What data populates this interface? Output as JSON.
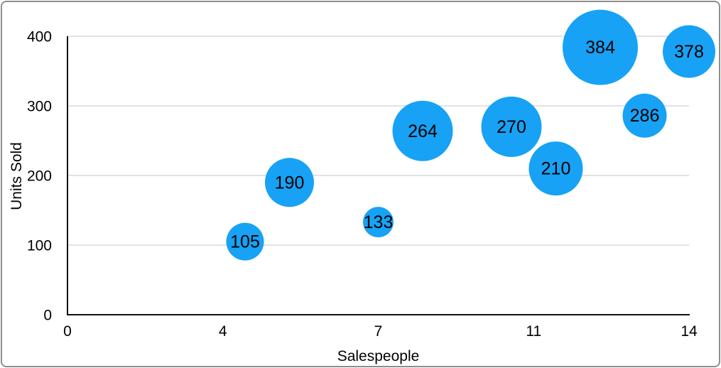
{
  "chart_data": {
    "type": "bubble",
    "title": "",
    "xlabel": "Salespeople",
    "ylabel": "Units Sold",
    "xlim": [
      0,
      14
    ],
    "ylim": [
      0,
      400
    ],
    "x_ticks": [
      {
        "v": 0,
        "label": "0"
      },
      {
        "v": 3.5,
        "label": "4"
      },
      {
        "v": 7,
        "label": "7"
      },
      {
        "v": 10.5,
        "label": "11"
      },
      {
        "v": 14,
        "label": "14"
      }
    ],
    "y_ticks": [
      {
        "v": 0,
        "label": "0"
      },
      {
        "v": 100,
        "label": "100"
      },
      {
        "v": 200,
        "label": "200"
      },
      {
        "v": 300,
        "label": "300"
      },
      {
        "v": 400,
        "label": "400"
      }
    ],
    "grid": "horizontal",
    "legend_position": "none",
    "colors": {
      "bubble_fill": "#17A2F5",
      "axis_line": "#111111",
      "gridline": "#d8d8d8",
      "text": "#000000",
      "frame_border": "#8e8e8e"
    },
    "points": [
      {
        "x": 4,
        "y": 105,
        "label": "105",
        "radius_px": 26.5
      },
      {
        "x": 5,
        "y": 190,
        "label": "190",
        "radius_px": 34.5
      },
      {
        "x": 7,
        "y": 133,
        "label": "133",
        "radius_px": 21.5
      },
      {
        "x": 8,
        "y": 264,
        "label": "264",
        "radius_px": 42.5
      },
      {
        "x": 10,
        "y": 270,
        "label": "270",
        "radius_px": 42.5
      },
      {
        "x": 11,
        "y": 210,
        "label": "210",
        "radius_px": 38
      },
      {
        "x": 12,
        "y": 384,
        "label": "384",
        "radius_px": 53
      },
      {
        "x": 13,
        "y": 286,
        "label": "286",
        "radius_px": 31
      },
      {
        "x": 14,
        "y": 378,
        "label": "378",
        "radius_px": 37
      }
    ]
  }
}
